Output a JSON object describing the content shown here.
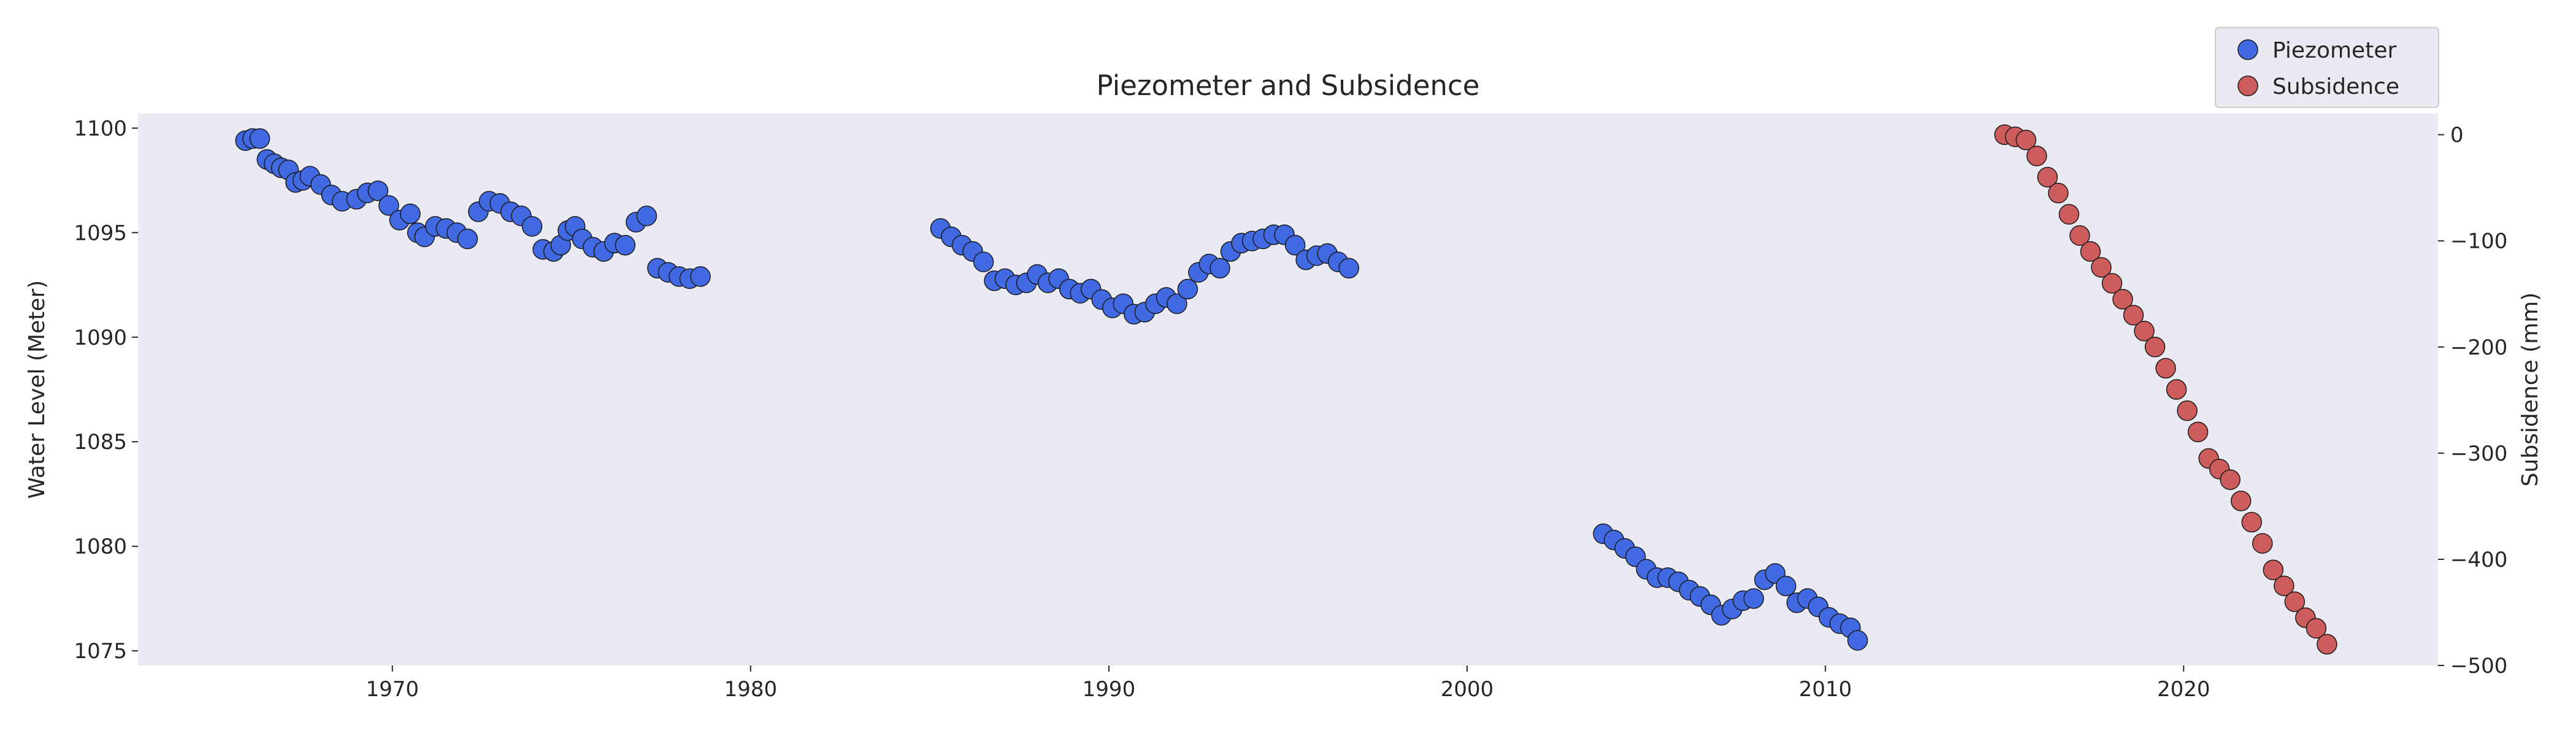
{
  "chart_data": {
    "type": "scatter",
    "title": "Piezometer and Subsidence",
    "xlabel": "",
    "ylabel": "Water Level (Meter)",
    "ylabel_right": "Subsidence (mm)",
    "xlim": [
      1962.9,
      2027.1
    ],
    "ylim": [
      1074.3,
      1100.7
    ],
    "ylim_right": [
      -500,
      20
    ],
    "x_ticks": [
      1970,
      1980,
      1990,
      2000,
      2010,
      2020
    ],
    "y_ticks": [
      1075,
      1080,
      1085,
      1090,
      1095,
      1100
    ],
    "y_ticks_right": [
      0,
      -100,
      -200,
      -300,
      -400,
      -500
    ],
    "y_tick_labels_right": [
      "0",
      "−100",
      "−200",
      "−300",
      "−400",
      "−500"
    ],
    "grid": false,
    "legend_position": "top-right",
    "colors": {
      "plot_background": "#eaeaf2",
      "piezometer": "#4169e1",
      "subsidence": "#cd5c5c",
      "marker_edge": "#1a1a1a"
    },
    "series": [
      {
        "name": "Piezometer",
        "axis": "left",
        "segments": [
          {
            "x": [
              1965.9,
              1966.1,
              1966.3,
              1966.5,
              1966.7,
              1966.9,
              1967.1,
              1967.3,
              1967.5,
              1967.7,
              1968.0,
              1968.3,
              1968.6,
              1969.0,
              1969.3,
              1969.6,
              1969.9,
              1970.2,
              1970.5,
              1970.7,
              1970.9,
              1971.2,
              1971.5,
              1971.8,
              1972.1,
              1972.4,
              1972.7,
              1973.0,
              1973.3,
              1973.6,
              1973.9,
              1974.2,
              1974.5,
              1974.7,
              1974.9,
              1975.1,
              1975.3,
              1975.6,
              1975.9,
              1976.2,
              1976.5,
              1976.8,
              1977.1,
              1977.4,
              1977.7,
              1978.0,
              1978.3,
              1978.6
            ],
            "y": [
              1099.4,
              1099.5,
              1099.5,
              1098.5,
              1098.3,
              1098.1,
              1098.0,
              1097.4,
              1097.5,
              1097.7,
              1097.3,
              1096.8,
              1096.5,
              1096.6,
              1096.9,
              1097.0,
              1096.3,
              1095.6,
              1095.9,
              1095.0,
              1094.8,
              1095.3,
              1095.2,
              1095.0,
              1094.7,
              1096.0,
              1096.5,
              1096.4,
              1096.0,
              1095.8,
              1095.3,
              1094.2,
              1094.1,
              1094.4,
              1095.1,
              1095.3,
              1094.7,
              1094.3,
              1094.1,
              1094.5,
              1094.4,
              1095.5,
              1095.8,
              1093.3,
              1093.1,
              1092.9,
              1092.8,
              1092.9
            ],
            "_note": ""
          },
          {
            "x": [
              1985.3,
              1985.6,
              1985.9,
              1986.2,
              1986.5,
              1986.8,
              1987.1,
              1987.4,
              1987.7,
              1988.0,
              1988.3,
              1988.6,
              1988.9,
              1989.2,
              1989.5,
              1989.8,
              1990.1,
              1990.4,
              1990.7,
              1991.0,
              1991.3,
              1991.6,
              1991.9,
              1992.2,
              1992.5,
              1992.8,
              1993.1,
              1993.4,
              1993.7,
              1994.0,
              1994.3,
              1994.6,
              1994.9,
              1995.2,
              1995.5,
              1995.8,
              1996.1,
              1996.4,
              1996.7
            ],
            "y": [
              1095.2,
              1094.8,
              1094.4,
              1094.1,
              1093.6,
              1092.7,
              1092.8,
              1092.5,
              1092.6,
              1093.0,
              1092.6,
              1092.8,
              1092.3,
              1092.1,
              1092.3,
              1091.8,
              1091.4,
              1091.6,
              1091.1,
              1091.2,
              1091.6,
              1091.9,
              1091.6,
              1092.3,
              1093.1,
              1093.5,
              1093.3,
              1094.1,
              1094.5,
              1094.6,
              1094.7,
              1094.9,
              1094.9,
              1094.4,
              1093.7,
              1093.9,
              1094.0,
              1093.6,
              1093.3
            ],
            "_note": ""
          },
          {
            "x": [
              2003.8,
              2004.1,
              2004.4,
              2004.7,
              2005.0,
              2005.3,
              2005.6,
              2005.9,
              2006.2,
              2006.5,
              2006.8,
              2007.1,
              2007.4,
              2007.7,
              2008.0,
              2008.3,
              2008.6,
              2008.9,
              2009.2,
              2009.5,
              2009.8,
              2010.1,
              2010.4,
              2010.7,
              2010.9
            ],
            "y": [
              1080.6,
              1080.3,
              1079.9,
              1079.5,
              1078.9,
              1078.5,
              1078.5,
              1078.3,
              1077.9,
              1077.6,
              1077.2,
              1076.7,
              1077.0,
              1077.4,
              1077.5,
              1078.4,
              1078.7,
              1078.1,
              1077.3,
              1077.5,
              1077.1,
              1076.6,
              1076.3,
              1076.1,
              1075.5
            ],
            "_note": ""
          }
        ]
      },
      {
        "name": "Subsidence",
        "axis": "right",
        "segments": [
          {
            "x": [
              2015.0,
              2015.3,
              2015.6,
              2015.9,
              2016.2,
              2016.5,
              2016.8,
              2017.1,
              2017.4,
              2017.7,
              2018.0,
              2018.3,
              2018.6,
              2018.9,
              2019.2,
              2019.5,
              2019.8,
              2020.1,
              2020.4,
              2020.7,
              2021.0,
              2021.3,
              2021.6,
              2021.9,
              2022.2,
              2022.5,
              2022.8,
              2023.1,
              2023.4,
              2023.7,
              2024.0
            ],
            "y": [
              0,
              -2,
              -5,
              -20,
              -40,
              -55,
              -75,
              -95,
              -110,
              -125,
              -140,
              -155,
              -170,
              -185,
              -200,
              -220,
              -240,
              -260,
              -280,
              -305,
              -315,
              -325,
              -345,
              -365,
              -385,
              -410,
              -425,
              -440,
              -455,
              -465,
              -480
            ],
            "_note": ""
          }
        ]
      }
    ]
  }
}
